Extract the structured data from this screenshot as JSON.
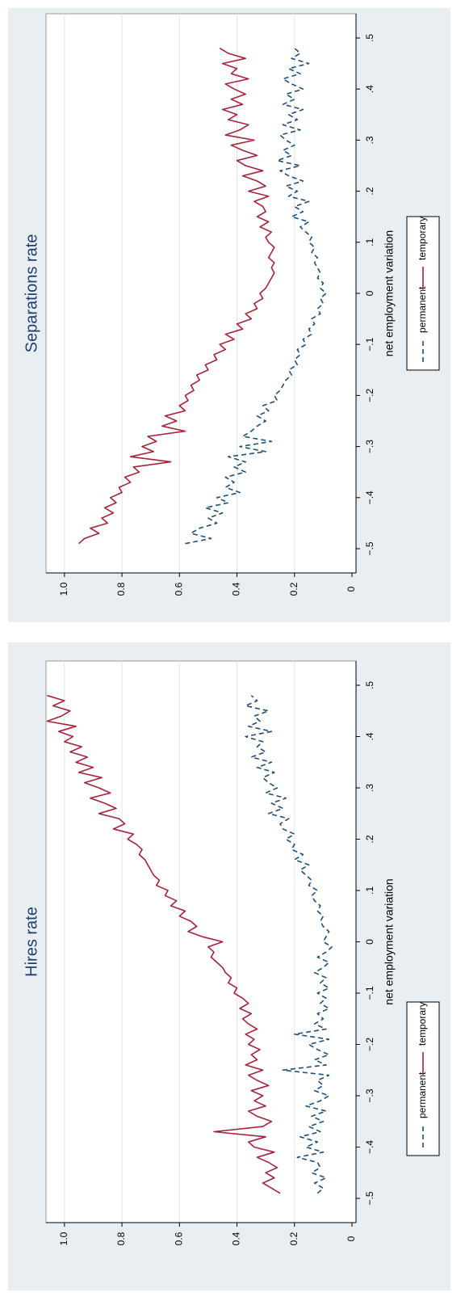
{
  "chart_data": [
    {
      "type": "line",
      "title": "Hires rate",
      "xlabel": "net employment variation",
      "ylabel": "",
      "xlim": [
        -0.5,
        0.5
      ],
      "ylim": [
        0,
        1.05
      ],
      "x_ticks": [
        "-.5",
        "-.4",
        "-.3",
        "-.2",
        "-.1",
        "0",
        ".1",
        ".2",
        ".3",
        ".4",
        ".5"
      ],
      "y_ticks": [
        "0",
        "0.2",
        "0.4",
        "0.6",
        "0.8",
        "1.0"
      ],
      "grid": true,
      "legend_position": "bottom",
      "x": [
        -0.49,
        -0.48,
        -0.47,
        -0.46,
        -0.45,
        -0.44,
        -0.43,
        -0.42,
        -0.41,
        -0.4,
        -0.39,
        -0.38,
        -0.37,
        -0.36,
        -0.35,
        -0.34,
        -0.33,
        -0.32,
        -0.31,
        -0.3,
        -0.29,
        -0.28,
        -0.27,
        -0.26,
        -0.25,
        -0.24,
        -0.23,
        -0.22,
        -0.21,
        -0.2,
        -0.19,
        -0.18,
        -0.17,
        -0.16,
        -0.15,
        -0.14,
        -0.13,
        -0.12,
        -0.11,
        -0.1,
        -0.09,
        -0.08,
        -0.07,
        -0.06,
        -0.05,
        -0.04,
        -0.03,
        -0.02,
        -0.01,
        0.0,
        0.01,
        0.02,
        0.03,
        0.04,
        0.05,
        0.06,
        0.07,
        0.08,
        0.09,
        0.1,
        0.11,
        0.12,
        0.13,
        0.14,
        0.15,
        0.16,
        0.17,
        0.18,
        0.19,
        0.2,
        0.21,
        0.22,
        0.23,
        0.24,
        0.25,
        0.26,
        0.27,
        0.28,
        0.29,
        0.3,
        0.31,
        0.32,
        0.33,
        0.34,
        0.35,
        0.36,
        0.37,
        0.38,
        0.39,
        0.4,
        0.41,
        0.42,
        0.43,
        0.44,
        0.45,
        0.46,
        0.47,
        0.48
      ],
      "series": [
        {
          "name": "permanent",
          "color": "#1f4e79",
          "dash": "dashed",
          "values": [
            0.12,
            0.1,
            0.13,
            0.09,
            0.14,
            0.11,
            0.12,
            0.19,
            0.1,
            0.16,
            0.12,
            0.18,
            0.11,
            0.15,
            0.1,
            0.14,
            0.09,
            0.16,
            0.11,
            0.08,
            0.13,
            0.1,
            0.12,
            0.08,
            0.24,
            0.09,
            0.13,
            0.08,
            0.12,
            0.15,
            0.08,
            0.2,
            0.09,
            0.13,
            0.1,
            0.12,
            0.08,
            0.11,
            0.09,
            0.12,
            0.08,
            0.11,
            0.09,
            0.13,
            0.1,
            0.08,
            0.12,
            0.09,
            0.07,
            0.1,
            0.09,
            0.08,
            0.1,
            0.11,
            0.1,
            0.12,
            0.11,
            0.13,
            0.14,
            0.12,
            0.15,
            0.14,
            0.16,
            0.18,
            0.15,
            0.2,
            0.17,
            0.21,
            0.2,
            0.23,
            0.2,
            0.24,
            0.25,
            0.22,
            0.29,
            0.24,
            0.28,
            0.23,
            0.3,
            0.26,
            0.29,
            0.31,
            0.27,
            0.33,
            0.28,
            0.35,
            0.3,
            0.33,
            0.31,
            0.37,
            0.28,
            0.36,
            0.32,
            0.34,
            0.29,
            0.37,
            0.33,
            0.35
          ]
        },
        {
          "name": "temporary",
          "color": "#a3253a",
          "dash": "solid",
          "values": [
            0.25,
            0.28,
            0.31,
            0.27,
            0.3,
            0.26,
            0.29,
            0.33,
            0.27,
            0.34,
            0.36,
            0.3,
            0.48,
            0.31,
            0.28,
            0.33,
            0.36,
            0.3,
            0.34,
            0.31,
            0.35,
            0.29,
            0.33,
            0.36,
            0.31,
            0.37,
            0.33,
            0.35,
            0.32,
            0.36,
            0.34,
            0.37,
            0.33,
            0.36,
            0.38,
            0.35,
            0.39,
            0.36,
            0.38,
            0.41,
            0.4,
            0.43,
            0.42,
            0.44,
            0.45,
            0.47,
            0.49,
            0.48,
            0.5,
            0.45,
            0.52,
            0.57,
            0.54,
            0.56,
            0.6,
            0.58,
            0.63,
            0.61,
            0.65,
            0.64,
            0.68,
            0.67,
            0.69,
            0.7,
            0.71,
            0.72,
            0.74,
            0.73,
            0.75,
            0.78,
            0.76,
            0.83,
            0.79,
            0.81,
            0.88,
            0.82,
            0.86,
            0.91,
            0.84,
            0.88,
            0.93,
            0.87,
            0.95,
            0.9,
            0.96,
            0.92,
            0.98,
            0.94,
            1.0,
            0.97,
            1.02,
            0.96,
            1.06,
            1.01,
            0.98,
            1.04,
            1.0,
            1.06
          ]
        }
      ]
    },
    {
      "type": "line",
      "title": "Separations rate",
      "xlabel": "net employment variation",
      "ylabel": "",
      "xlim": [
        -0.5,
        0.5
      ],
      "ylim": [
        0,
        1.05
      ],
      "x_ticks": [
        "-.5",
        "-.4",
        "-.3",
        "-.2",
        "-.1",
        "0",
        ".1",
        ".2",
        ".3",
        ".4",
        ".5"
      ],
      "y_ticks": [
        "0",
        "0.2",
        "0.4",
        "0.6",
        "0.8",
        "1.0"
      ],
      "grid": true,
      "legend_position": "bottom",
      "x": [
        -0.49,
        -0.48,
        -0.47,
        -0.46,
        -0.45,
        -0.44,
        -0.43,
        -0.42,
        -0.41,
        -0.4,
        -0.39,
        -0.38,
        -0.37,
        -0.36,
        -0.35,
        -0.34,
        -0.33,
        -0.32,
        -0.31,
        -0.3,
        -0.29,
        -0.28,
        -0.27,
        -0.26,
        -0.25,
        -0.24,
        -0.23,
        -0.22,
        -0.21,
        -0.2,
        -0.19,
        -0.18,
        -0.17,
        -0.16,
        -0.15,
        -0.14,
        -0.13,
        -0.12,
        -0.11,
        -0.1,
        -0.09,
        -0.08,
        -0.07,
        -0.06,
        -0.05,
        -0.04,
        -0.03,
        -0.02,
        -0.01,
        0.0,
        0.01,
        0.02,
        0.03,
        0.04,
        0.05,
        0.06,
        0.07,
        0.08,
        0.09,
        0.1,
        0.11,
        0.12,
        0.13,
        0.14,
        0.15,
        0.16,
        0.17,
        0.18,
        0.19,
        0.2,
        0.21,
        0.22,
        0.23,
        0.24,
        0.25,
        0.26,
        0.27,
        0.28,
        0.29,
        0.3,
        0.31,
        0.32,
        0.33,
        0.34,
        0.35,
        0.36,
        0.37,
        0.38,
        0.39,
        0.4,
        0.41,
        0.42,
        0.43,
        0.44,
        0.45,
        0.46,
        0.47,
        0.48
      ],
      "series": [
        {
          "name": "permanent",
          "color": "#1f4e79",
          "dash": "dashed",
          "values": [
            0.58,
            0.49,
            0.56,
            0.53,
            0.47,
            0.5,
            0.45,
            0.51,
            0.43,
            0.47,
            0.39,
            0.44,
            0.41,
            0.44,
            0.37,
            0.41,
            0.37,
            0.43,
            0.3,
            0.39,
            0.28,
            0.38,
            0.35,
            0.33,
            0.3,
            0.33,
            0.29,
            0.31,
            0.26,
            0.27,
            0.25,
            0.24,
            0.23,
            0.21,
            0.22,
            0.19,
            0.2,
            0.18,
            0.19,
            0.16,
            0.17,
            0.14,
            0.15,
            0.13,
            0.14,
            0.11,
            0.12,
            0.1,
            0.11,
            0.09,
            0.11,
            0.1,
            0.12,
            0.11,
            0.12,
            0.13,
            0.12,
            0.14,
            0.13,
            0.15,
            0.14,
            0.16,
            0.18,
            0.15,
            0.21,
            0.17,
            0.2,
            0.15,
            0.22,
            0.19,
            0.23,
            0.17,
            0.22,
            0.25,
            0.18,
            0.26,
            0.21,
            0.24,
            0.2,
            0.23,
            0.25,
            0.18,
            0.24,
            0.19,
            0.22,
            0.17,
            0.24,
            0.2,
            0.23,
            0.17,
            0.21,
            0.24,
            0.18,
            0.22,
            0.15,
            0.21,
            0.18,
            0.2
          ]
        },
        {
          "name": "temporary",
          "color": "#a3253a",
          "dash": "solid",
          "values": [
            0.95,
            0.93,
            0.88,
            0.91,
            0.85,
            0.87,
            0.83,
            0.86,
            0.82,
            0.84,
            0.8,
            0.81,
            0.77,
            0.79,
            0.74,
            0.76,
            0.63,
            0.77,
            0.69,
            0.73,
            0.68,
            0.71,
            0.58,
            0.66,
            0.61,
            0.65,
            0.58,
            0.6,
            0.57,
            0.58,
            0.55,
            0.56,
            0.53,
            0.54,
            0.5,
            0.51,
            0.47,
            0.48,
            0.44,
            0.46,
            0.41,
            0.44,
            0.38,
            0.4,
            0.35,
            0.37,
            0.33,
            0.34,
            0.31,
            0.32,
            0.3,
            0.29,
            0.28,
            0.27,
            0.28,
            0.27,
            0.29,
            0.28,
            0.27,
            0.29,
            0.3,
            0.28,
            0.32,
            0.29,
            0.33,
            0.3,
            0.31,
            0.34,
            0.29,
            0.36,
            0.3,
            0.33,
            0.38,
            0.31,
            0.37,
            0.4,
            0.33,
            0.38,
            0.42,
            0.34,
            0.44,
            0.39,
            0.36,
            0.43,
            0.4,
            0.45,
            0.38,
            0.42,
            0.37,
            0.41,
            0.44,
            0.36,
            0.42,
            0.4,
            0.45,
            0.37,
            0.43,
            0.46
          ]
        }
      ]
    }
  ]
}
